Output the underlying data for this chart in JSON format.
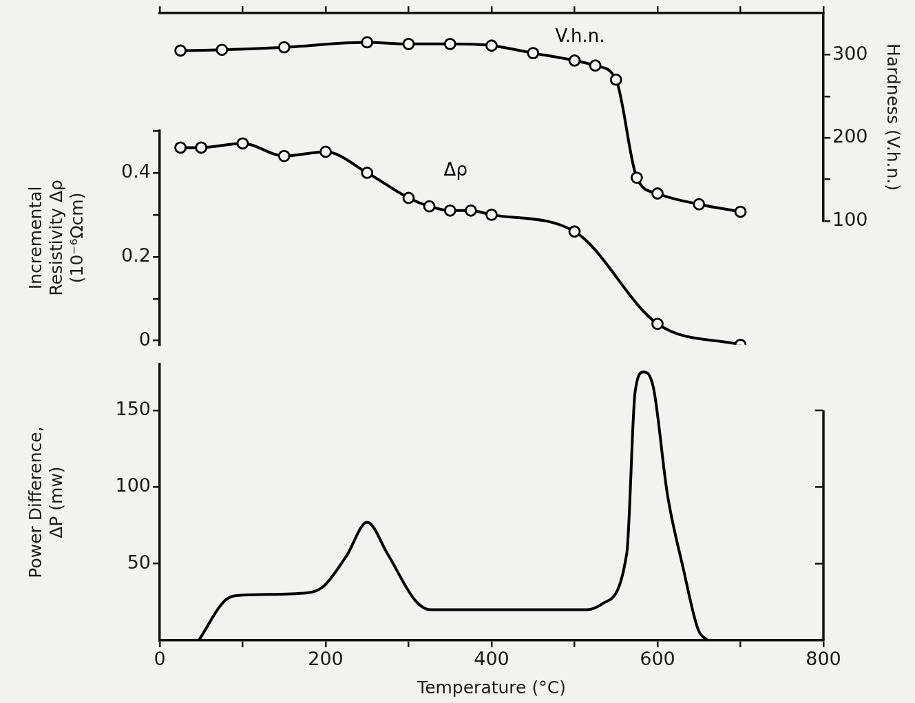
{
  "chart_data": [
    {
      "type": "line",
      "ylabel": "Hardness (V.h.n.)",
      "xlim": [
        0,
        800
      ],
      "xticks": [
        0,
        100,
        200,
        300,
        400,
        500,
        600,
        700,
        800
      ],
      "ylim": [
        100,
        350
      ],
      "yticks": [
        100,
        {
          "value": 150,
          "label": null
        },
        200,
        {
          "value": 250,
          "label": null
        },
        300
      ],
      "tick_labels": "y",
      "marker": "circle",
      "x": [
        25,
        75,
        150,
        250,
        300,
        350,
        400,
        450,
        500,
        525,
        550,
        575,
        600,
        650,
        700
      ],
      "series": [
        {
          "name": "V.h.n.",
          "color": "#000000",
          "values": [
            305,
            306,
            309,
            315,
            313,
            313,
            311,
            302,
            293,
            287,
            270,
            152,
            133,
            120,
            111
          ]
        }
      ]
    },
    {
      "type": "line",
      "ylabel": "Incremental Resistivity Δρ (10⁻⁶Ωcm)",
      "xlim": [
        0,
        800
      ],
      "ylim": [
        -0.01,
        0.5
      ],
      "yticks": [
        0,
        {
          "value": 0.1,
          "label": null
        },
        0.2,
        {
          "value": 0.3,
          "label": null
        },
        0.4,
        {
          "value": 0.5,
          "label": null
        }
      ],
      "tick_labels": "y",
      "marker": "circle",
      "x": [
        25,
        50,
        100,
        150,
        200,
        250,
        300,
        325,
        350,
        375,
        400,
        500,
        600,
        700
      ],
      "series": [
        {
          "name": "Δρ",
          "color": "#000000",
          "values": [
            0.46,
            0.46,
            0.47,
            0.44,
            0.45,
            0.4,
            0.34,
            0.32,
            0.31,
            0.31,
            0.3,
            0.26,
            0.04,
            -0.01
          ]
        }
      ]
    },
    {
      "type": "line",
      "xlabel": "Temperature (°C)",
      "ylabel": "Power Difference, ΔP (mw)",
      "xlim": [
        0,
        800
      ],
      "xticks": [
        0,
        {
          "value": 100,
          "label": null
        },
        200,
        {
          "value": 300,
          "label": null
        },
        400,
        {
          "value": 500,
          "label": null
        },
        600,
        {
          "value": 700,
          "label": null
        },
        800
      ],
      "ylim": [
        0,
        180
      ],
      "yticks": [
        50,
        100,
        150
      ],
      "x": [
        47,
        81,
        100,
        178,
        197,
        225,
        250,
        275,
        308,
        326,
        388,
        515,
        534,
        563,
        573,
        583,
        595,
        612,
        631,
        649,
        660
      ],
      "series": [
        {
          "color": "#000000",
          "values": [
            0,
            27,
            29.5,
            31,
            35,
            55,
            77,
            56,
            26,
            20,
            20,
            20,
            24,
            57,
            162,
            175,
            165,
            95,
            47,
            7,
            0
          ]
        }
      ]
    }
  ]
}
